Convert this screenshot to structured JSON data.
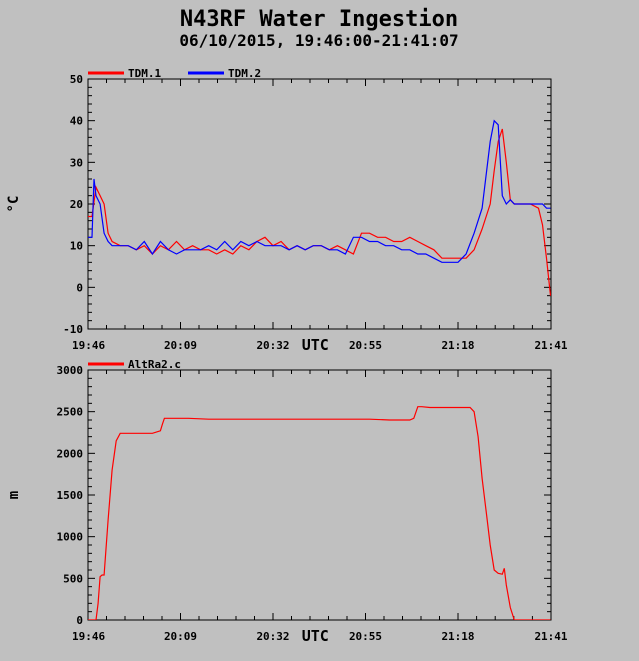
{
  "title": "N43RF Water Ingestion",
  "subtitle": "06/10/2015, 19:46:00-21:41:07",
  "chart_data": [
    {
      "type": "line",
      "ylabel": "°C",
      "xlabel": "UTC",
      "xlim": [
        0,
        115.12
      ],
      "ylim": [
        -10,
        50
      ],
      "yticks": [
        -10,
        0,
        10,
        20,
        30,
        40,
        50
      ],
      "xticks": [
        0,
        23,
        46,
        69,
        92,
        115.12
      ],
      "xtick_labels": [
        "19:46",
        "20:09",
        "20:32",
        "20:55",
        "21:18",
        "21:41"
      ],
      "grid": false,
      "legend": "top-left",
      "series": [
        {
          "name": "TDM.1",
          "color": "#ff0000",
          "x": [
            0,
            1,
            2,
            3,
            4,
            5,
            6,
            8,
            10,
            12,
            14,
            16,
            18,
            20,
            22,
            24,
            26,
            28,
            30,
            32,
            34,
            36,
            38,
            40,
            42,
            44,
            46,
            48,
            50,
            52,
            54,
            56,
            58,
            60,
            62,
            64,
            66,
            68,
            70,
            72,
            74,
            76,
            78,
            80,
            82,
            84,
            86,
            88,
            90,
            92,
            94,
            96,
            98,
            100,
            101,
            102,
            103,
            104,
            105,
            106,
            108,
            110,
            112,
            113,
            114,
            115
          ],
          "y": [
            17,
            17,
            24,
            22,
            20,
            13,
            11,
            10,
            10,
            9,
            10,
            8,
            10,
            9,
            11,
            9,
            10,
            9,
            9,
            8,
            9,
            8,
            10,
            9,
            11,
            12,
            10,
            11,
            9,
            10,
            9,
            10,
            10,
            9,
            10,
            9,
            8,
            13,
            13,
            12,
            12,
            11,
            11,
            12,
            11,
            10,
            9,
            7,
            7,
            7,
            7,
            9,
            14,
            20,
            28,
            35,
            38,
            30,
            21,
            20,
            20,
            20,
            19,
            15,
            7,
            -2
          ]
        },
        {
          "name": "TDM.2",
          "color": "#0000ff",
          "x": [
            0,
            1,
            1.5,
            2,
            3,
            4,
            5,
            6,
            8,
            10,
            12,
            14,
            16,
            18,
            20,
            22,
            24,
            26,
            28,
            30,
            32,
            34,
            36,
            38,
            40,
            42,
            44,
            46,
            48,
            50,
            52,
            54,
            56,
            58,
            60,
            62,
            64,
            66,
            68,
            70,
            72,
            74,
            76,
            78,
            80,
            82,
            84,
            86,
            88,
            90,
            92,
            94,
            96,
            98,
            100,
            101,
            102,
            103,
            104,
            105,
            106,
            108,
            110,
            112,
            113,
            114,
            115
          ],
          "y": [
            12,
            12,
            26,
            22,
            20,
            13,
            11,
            10,
            10,
            10,
            9,
            11,
            8,
            11,
            9,
            8,
            9,
            9,
            9,
            10,
            9,
            11,
            9,
            11,
            10,
            11,
            10,
            10,
            10,
            9,
            10,
            9,
            10,
            10,
            9,
            9,
            8,
            12,
            12,
            11,
            11,
            10,
            10,
            9,
            9,
            8,
            8,
            7,
            6,
            6,
            6,
            8,
            13,
            19,
            35,
            40,
            39,
            22,
            20,
            21,
            20,
            20,
            20,
            20,
            20,
            19,
            19
          ]
        }
      ]
    },
    {
      "type": "line",
      "ylabel": "m",
      "xlabel": "UTC",
      "xlim": [
        0,
        115.12
      ],
      "ylim": [
        0,
        3000
      ],
      "yticks": [
        0,
        500,
        1000,
        1500,
        2000,
        2500,
        3000
      ],
      "xticks": [
        0,
        23,
        46,
        69,
        92,
        115.12
      ],
      "xtick_labels": [
        "19:46",
        "20:09",
        "20:32",
        "20:55",
        "21:18",
        "21:41"
      ],
      "grid": false,
      "legend": "top-left",
      "series": [
        {
          "name": "AltRa2.c",
          "color": "#ff0000",
          "x": [
            0,
            2,
            2.5,
            3,
            3.5,
            4,
            5,
            6,
            7,
            8,
            10,
            12,
            14,
            16,
            18,
            18.5,
            19,
            20,
            25,
            30,
            40,
            50,
            60,
            70,
            75,
            80,
            81,
            82,
            83,
            85,
            90,
            93,
            95,
            96,
            97,
            98,
            99,
            100,
            101,
            102,
            103,
            103.5,
            104,
            105,
            106,
            108,
            110,
            115
          ],
          "y": [
            0,
            0,
            200,
            520,
            540,
            540,
            1200,
            1800,
            2150,
            2240,
            2240,
            2240,
            2240,
            2240,
            2270,
            2350,
            2420,
            2420,
            2420,
            2410,
            2410,
            2410,
            2410,
            2410,
            2400,
            2400,
            2420,
            2560,
            2560,
            2550,
            2550,
            2550,
            2550,
            2500,
            2200,
            1700,
            1300,
            900,
            600,
            560,
            550,
            620,
            420,
            150,
            0,
            0,
            0,
            0
          ]
        }
      ]
    }
  ]
}
